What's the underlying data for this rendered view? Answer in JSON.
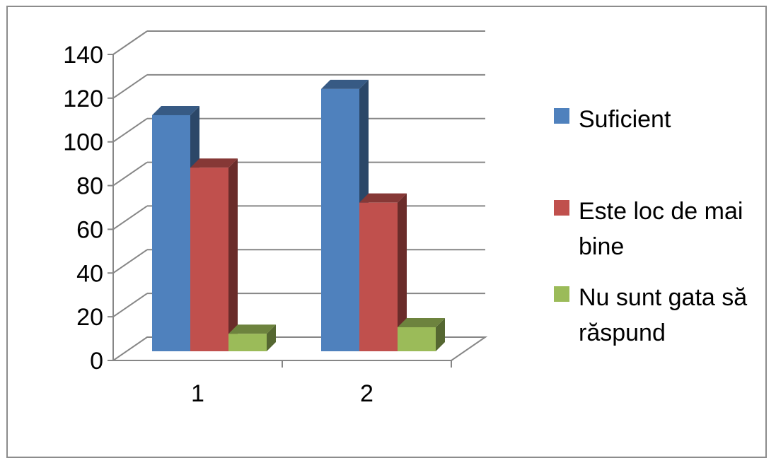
{
  "chart_data": {
    "type": "bar",
    "categories": [
      "1",
      "2"
    ],
    "series": [
      {
        "name": "Suficient",
        "values": [
          108,
          120
        ],
        "color": "#4f81bd"
      },
      {
        "name": "Este loc de mai bine",
        "values": [
          84,
          68
        ],
        "color": "#c0504d"
      },
      {
        "name": "Nu sunt gata să răspund",
        "values": [
          8,
          11
        ],
        "color": "#9bbb59"
      }
    ],
    "ylim": [
      0,
      140
    ],
    "yticks": [
      "0",
      "20",
      "40",
      "60",
      "80",
      "100",
      "120",
      "140"
    ],
    "grid": true,
    "legend": "right",
    "style": "3d-column"
  },
  "legend": {
    "items": [
      {
        "lines": [
          "Suficient"
        ]
      },
      {
        "lines": [
          "Este loc de mai",
          "bine"
        ]
      },
      {
        "lines": [
          "Nu sunt gata să",
          "răspund"
        ]
      }
    ]
  }
}
